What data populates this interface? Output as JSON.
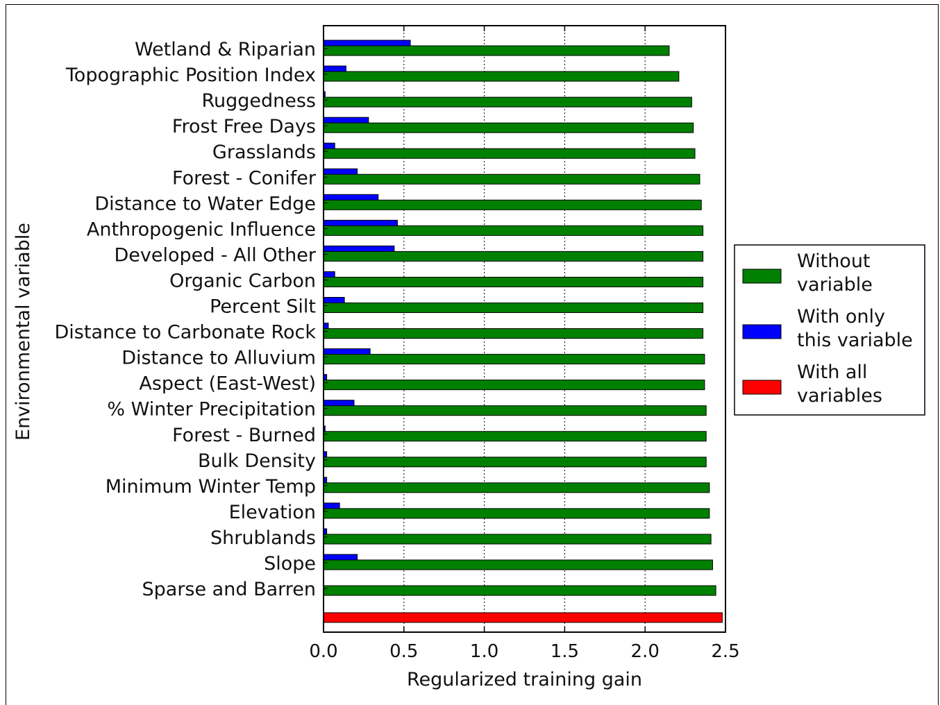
{
  "chart_data": {
    "type": "bar",
    "orientation": "horizontal",
    "xlabel": "Regularized training gain",
    "ylabel": "Environmental variable",
    "xlim": [
      0.0,
      2.5
    ],
    "xticks": [
      "0.0",
      "0.5",
      "1.0",
      "1.5",
      "2.0",
      "2.5"
    ],
    "grid": true,
    "legend_position": "right",
    "categories": [
      "Wetland & Riparian",
      "Topographic Position Index",
      "Ruggedness",
      "Frost Free Days",
      "Grasslands",
      "Forest - Conifer",
      "Distance to Water Edge",
      "Anthropogenic Influence",
      "Developed - All Other",
      "Organic Carbon",
      "Percent Silt",
      "Distance to Carbonate Rock",
      "Distance to Alluvium",
      "Aspect (East-West)",
      "% Winter Precipitation",
      "Forest - Burned",
      "Bulk Density",
      "Minimum Winter Temp",
      "Elevation",
      "Shrublands",
      "Slope",
      "Sparse and Barren"
    ],
    "series": [
      {
        "name": "Without variable",
        "color": "#008000",
        "values": [
          2.15,
          2.21,
          2.29,
          2.3,
          2.31,
          2.34,
          2.35,
          2.36,
          2.36,
          2.36,
          2.36,
          2.36,
          2.37,
          2.37,
          2.38,
          2.38,
          2.38,
          2.4,
          2.4,
          2.41,
          2.42,
          2.44
        ]
      },
      {
        "name": "With only this variable",
        "color": "#0000ff",
        "values": [
          0.54,
          0.14,
          0.01,
          0.28,
          0.07,
          0.21,
          0.34,
          0.46,
          0.44,
          0.07,
          0.13,
          0.03,
          0.29,
          0.02,
          0.19,
          0.01,
          0.02,
          0.02,
          0.1,
          0.02,
          0.21,
          0.0
        ]
      }
    ],
    "all_variables": {
      "name": "With all variables",
      "color": "#ff0000",
      "value": 2.48
    },
    "legend": [
      {
        "lines": [
          "Without",
          "variable"
        ],
        "color": "#008000"
      },
      {
        "lines": [
          "With only",
          "this variable"
        ],
        "color": "#0000ff"
      },
      {
        "lines": [
          "With all",
          "variables"
        ],
        "color": "#ff0000"
      }
    ]
  }
}
